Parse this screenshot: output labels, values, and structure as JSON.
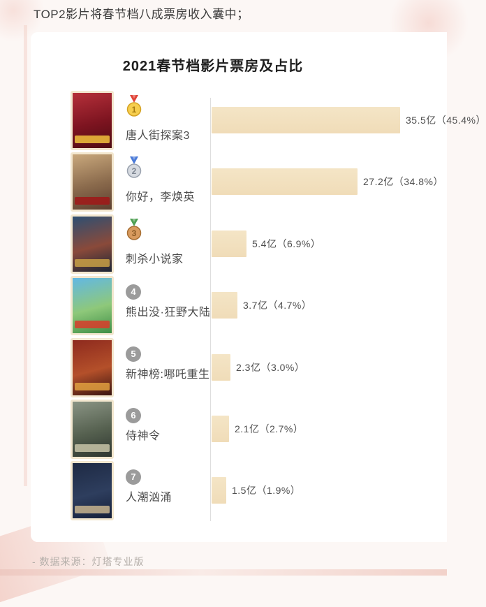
{
  "page": {
    "heading": "TOP2影片将春节档八成票房收入囊中；",
    "footer": "- 数据来源：灯塔专业版"
  },
  "chart": {
    "title": "2021春节档影片票房及占比",
    "bar_color": "#f1dfbc",
    "axis_color": "#dedede"
  },
  "chart_data": {
    "type": "bar",
    "orientation": "horizontal",
    "title": "2021春节档影片票房及占比",
    "unit": "亿 (CNY 100M)",
    "categories": [
      "唐人街探案3",
      "你好，李焕英",
      "刺杀小说家",
      "熊出没·狂野大陆",
      "新神榜:哪吒重生",
      "侍神令",
      "人潮汹涌"
    ],
    "values": [
      35.5,
      27.2,
      5.4,
      3.7,
      2.3,
      2.1,
      1.5
    ],
    "share_pct": [
      45.4,
      34.8,
      6.9,
      4.7,
      3.0,
      2.7,
      1.9
    ],
    "value_labels": [
      "35.5亿（45.4%）",
      "27.2亿（34.8%）",
      "5.4亿（6.9%）",
      "3.7亿（4.7%）",
      "2.3亿（3.0%）",
      "2.1亿（2.7%）",
      "1.5亿（1.9%）"
    ],
    "xlim": [
      0,
      37
    ],
    "grid": false,
    "legend": false,
    "source": "灯塔专业版"
  },
  "medal_styles": {
    "gold": {
      "ribbon": "#e04438",
      "fill": "#f6ce4e",
      "edge": "#d4a224",
      "num": "#a57b10"
    },
    "silver": {
      "ribbon": "#4a7ad8",
      "fill": "#d6dae0",
      "edge": "#9aa2ae",
      "num": "#7e8692"
    },
    "bronze": {
      "ribbon": "#4fa053",
      "fill": "#d89a5e",
      "edge": "#a86f34",
      "num": "#8a5a24"
    }
  },
  "movies": [
    {
      "rank": 1,
      "medal": "gold",
      "title": "唐人街探案3",
      "value": 35.5,
      "label": "35.5亿（45.4%）",
      "poster": [
        "#b5303a",
        "#7d1420",
        "#4f0b12"
      ],
      "band": "#f2c23c"
    },
    {
      "rank": 2,
      "medal": "silver",
      "title": "你好，李焕英",
      "value": 27.2,
      "label": "27.2亿（34.8%）",
      "poster": [
        "#c9a87c",
        "#8a6a4c",
        "#5e4030"
      ],
      "band": "#a01818"
    },
    {
      "rank": 3,
      "medal": "bronze",
      "title": "刺杀小说家",
      "value": 5.4,
      "label": "5.4亿（6.9%）",
      "poster": [
        "#2e4f72",
        "#8a4a3a",
        "#1c2636"
      ],
      "band": "#c8a045"
    },
    {
      "rank": 4,
      "medal": null,
      "title": "熊出没·狂野大陆",
      "value": 3.7,
      "label": "3.7亿（4.7%）",
      "poster": [
        "#62b8e4",
        "#8ec87a",
        "#3e8e46"
      ],
      "band": "#d83c2a"
    },
    {
      "rank": 5,
      "medal": null,
      "title": "新神榜:哪吒重生",
      "value": 2.3,
      "label": "2.3亿（3.0%）",
      "poster": [
        "#8e2a1e",
        "#b4502a",
        "#3a1410"
      ],
      "band": "#e0a040"
    },
    {
      "rank": 6,
      "medal": null,
      "title": "侍神令",
      "value": 2.1,
      "label": "2.1亿（2.7%）",
      "poster": [
        "#8a9484",
        "#55604f",
        "#2e3630"
      ],
      "band": "#c8c4a8"
    },
    {
      "rank": 7,
      "medal": null,
      "title": "人潮汹涌",
      "value": 1.5,
      "label": "1.5亿（1.9%）",
      "poster": [
        "#1e2a44",
        "#2e3e5e",
        "#16203a"
      ],
      "band": "#c8b48e"
    }
  ]
}
